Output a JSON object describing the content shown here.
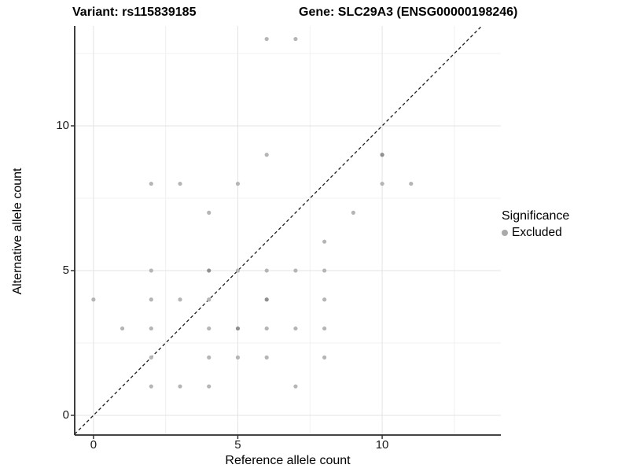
{
  "chart_data": {
    "type": "scatter",
    "titles": {
      "variant": "Variant: rs115839185",
      "gene": "Gene: SLC29A3 (ENSG00000198246)"
    },
    "xlabel": "Reference allele count",
    "ylabel": "Alternative allele count",
    "x_ticks": [
      0,
      5,
      10
    ],
    "y_ticks": [
      0,
      5,
      10
    ],
    "x_minor_ticks": [
      2.5,
      7.5,
      12.5
    ],
    "y_minor_ticks": [
      2.5,
      7.5,
      12.5
    ],
    "xlim": [
      -0.65,
      14.11
    ],
    "ylim": [
      -0.68,
      13.45
    ],
    "grid": true,
    "identity_line": {
      "slope": 1,
      "intercept": 0,
      "style": "dashed"
    },
    "legend": {
      "title": "Significance",
      "position": "right",
      "items": [
        {
          "label": "Excluded",
          "marker": "circle-icon",
          "color": "#aaaaaa"
        }
      ]
    },
    "series": [
      {
        "name": "Excluded",
        "points": [
          [
            0,
            4,
            1
          ],
          [
            1,
            3,
            1
          ],
          [
            2,
            1,
            1
          ],
          [
            2,
            2,
            1
          ],
          [
            2,
            3,
            1
          ],
          [
            2,
            4,
            1
          ],
          [
            2,
            5,
            1
          ],
          [
            2,
            8,
            1
          ],
          [
            3,
            1,
            1
          ],
          [
            3,
            4,
            1
          ],
          [
            3,
            8,
            1
          ],
          [
            4,
            1,
            1
          ],
          [
            4,
            2,
            1
          ],
          [
            4,
            3,
            1
          ],
          [
            4,
            4,
            1
          ],
          [
            4,
            5,
            2
          ],
          [
            4,
            7,
            1
          ],
          [
            5,
            2,
            1
          ],
          [
            5,
            3,
            2
          ],
          [
            5,
            5,
            1
          ],
          [
            5,
            8,
            1
          ],
          [
            6,
            2,
            1
          ],
          [
            6,
            3,
            1
          ],
          [
            6,
            4,
            2
          ],
          [
            6,
            5,
            1
          ],
          [
            6,
            9,
            1
          ],
          [
            6,
            13,
            1
          ],
          [
            7,
            1,
            1
          ],
          [
            7,
            3,
            1
          ],
          [
            7,
            5,
            1
          ],
          [
            7,
            13,
            1
          ],
          [
            8,
            2,
            1
          ],
          [
            8,
            3,
            1
          ],
          [
            8,
            4,
            1
          ],
          [
            8,
            5,
            1
          ],
          [
            8,
            6,
            1
          ],
          [
            9,
            7,
            1
          ],
          [
            10,
            8,
            1
          ],
          [
            10,
            9,
            2
          ],
          [
            11,
            8,
            1
          ]
        ]
      }
    ]
  },
  "colors": {
    "point": "#b5b5b5",
    "point_overplotted": "#8f8f8f",
    "grid_major": "#e3e3e3",
    "grid_minor": "#f0f0f0",
    "axis_line": "#2a2a2a",
    "identity_line": "#1c1c1c",
    "background": "#ffffff",
    "legend_key": "#aaaaaa"
  }
}
